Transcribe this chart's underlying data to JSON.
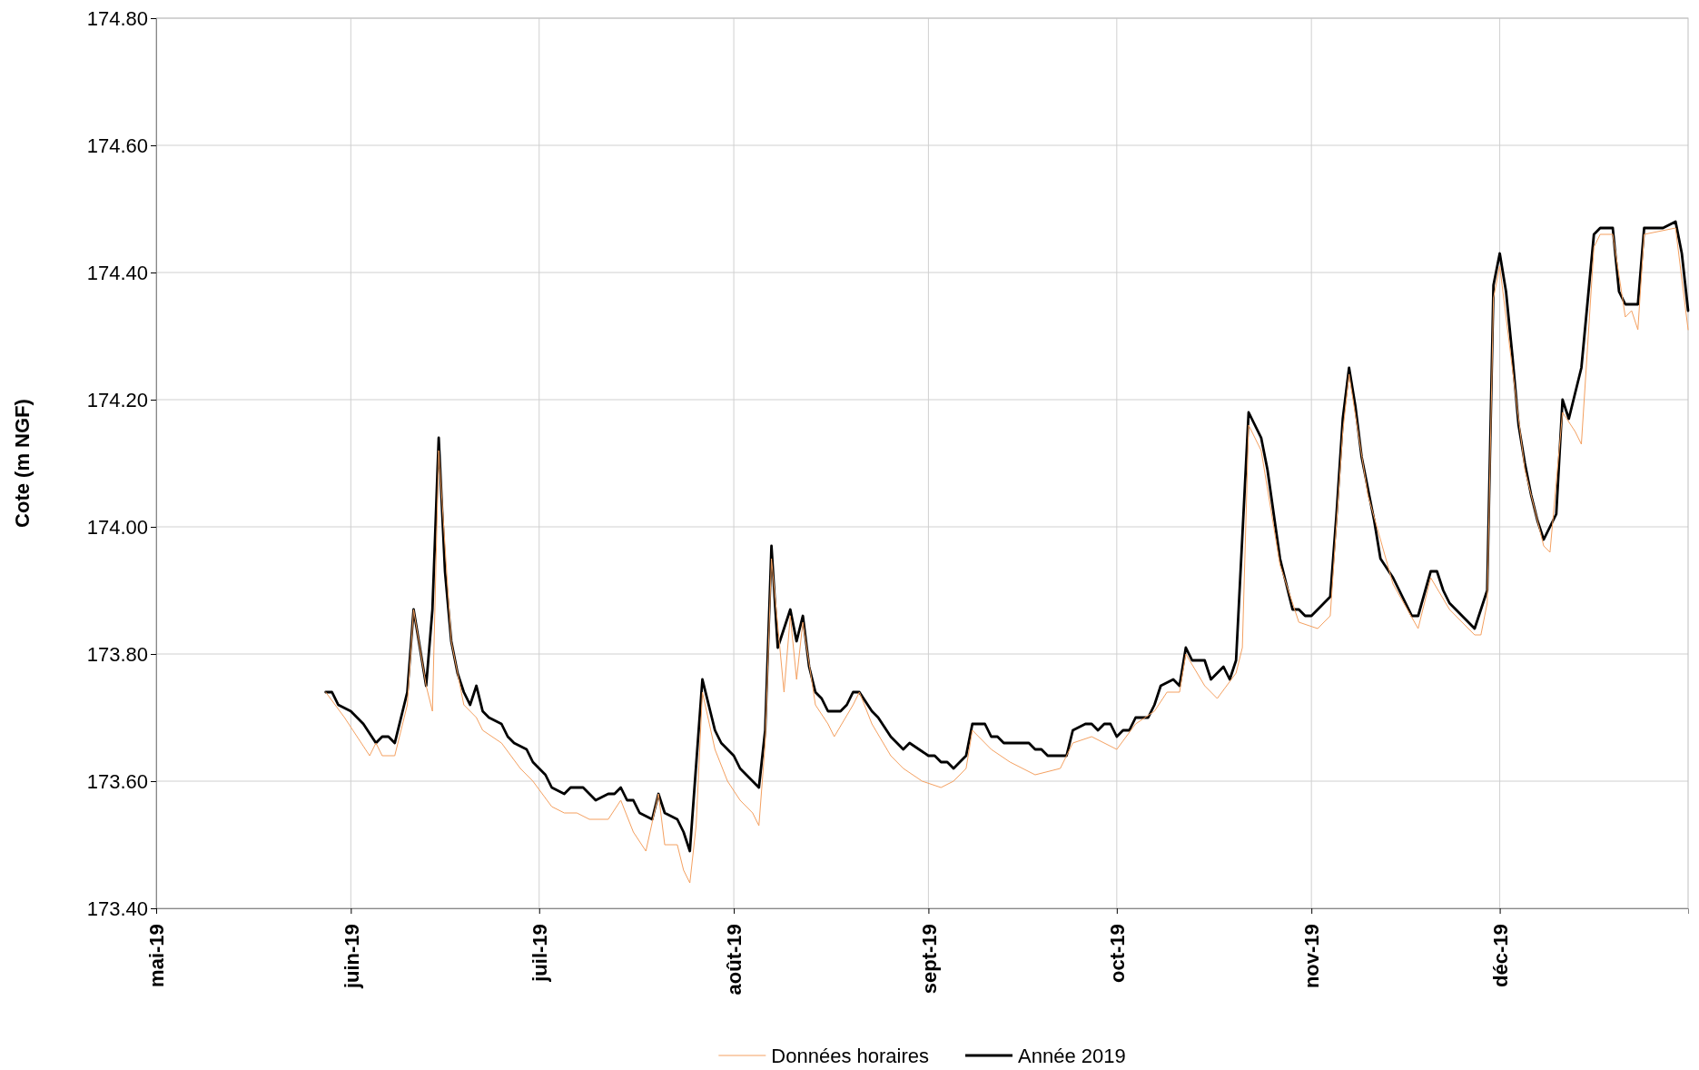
{
  "chart_data": {
    "type": "line",
    "ylabel": "Cote (m NGF)",
    "xlim": [
      "2019-05-01",
      "2019-12-31"
    ],
    "xticks": [
      {
        "value": "2019-05-01",
        "label": "mai-19"
      },
      {
        "value": "2019-06-01",
        "label": "juin-19"
      },
      {
        "value": "2019-07-01",
        "label": "juil-19"
      },
      {
        "value": "2019-08-01",
        "label": "août-19"
      },
      {
        "value": "2019-09-01",
        "label": "sept-19"
      },
      {
        "value": "2019-10-01",
        "label": "oct-19"
      },
      {
        "value": "2019-11-01",
        "label": "nov-19"
      },
      {
        "value": "2019-12-01",
        "label": "déc-19"
      }
    ],
    "ylim": [
      173.4,
      174.8
    ],
    "yticks": [
      {
        "value": 173.4,
        "label": "173.40"
      },
      {
        "value": 173.6,
        "label": "173.60"
      },
      {
        "value": 173.8,
        "label": "173.80"
      },
      {
        "value": 174.0,
        "label": "174.00"
      },
      {
        "value": 174.2,
        "label": "174.20"
      },
      {
        "value": 174.4,
        "label": "174.40"
      },
      {
        "value": 174.6,
        "label": "174.60"
      },
      {
        "value": 174.8,
        "label": "174.80"
      }
    ],
    "grid": true,
    "legend": "bottom",
    "line_style": "solid",
    "series": [
      {
        "name": "Données horaires",
        "color": "#f4a060",
        "x": [
          "2019-05-28",
          "2019-05-31",
          "2019-06-02",
          "2019-06-04",
          "2019-06-05",
          "2019-06-06",
          "2019-06-08",
          "2019-06-10",
          "2019-06-11",
          "2019-06-13",
          "2019-06-14",
          "2019-06-15",
          "2019-06-17",
          "2019-06-19",
          "2019-06-21",
          "2019-06-22",
          "2019-06-25",
          "2019-06-28",
          "2019-06-30",
          "2019-07-03",
          "2019-07-05",
          "2019-07-07",
          "2019-07-09",
          "2019-07-12",
          "2019-07-14",
          "2019-07-16",
          "2019-07-18",
          "2019-07-20",
          "2019-07-21",
          "2019-07-23",
          "2019-07-24",
          "2019-07-25",
          "2019-07-26",
          "2019-07-27",
          "2019-07-29",
          "2019-07-31",
          "2019-08-02",
          "2019-08-04",
          "2019-08-05",
          "2019-08-06",
          "2019-08-07",
          "2019-08-09",
          "2019-08-10",
          "2019-08-11",
          "2019-08-12",
          "2019-08-14",
          "2019-08-16",
          "2019-08-17",
          "2019-08-20",
          "2019-08-21",
          "2019-08-23",
          "2019-08-26",
          "2019-08-28",
          "2019-08-31",
          "2019-09-03",
          "2019-09-05",
          "2019-09-07",
          "2019-09-08",
          "2019-09-11",
          "2019-09-14",
          "2019-09-18",
          "2019-09-22",
          "2019-09-24",
          "2019-09-27",
          "2019-10-01",
          "2019-10-04",
          "2019-10-07",
          "2019-10-09",
          "2019-10-11",
          "2019-10-12",
          "2019-10-15",
          "2019-10-17",
          "2019-10-20",
          "2019-10-21",
          "2019-10-22",
          "2019-10-24",
          "2019-10-27",
          "2019-10-30",
          "2019-11-02",
          "2019-11-04",
          "2019-11-06",
          "2019-11-07",
          "2019-11-10",
          "2019-11-14",
          "2019-11-18",
          "2019-11-20",
          "2019-11-23",
          "2019-11-27",
          "2019-11-28",
          "2019-11-29",
          "2019-11-30",
          "2019-12-01",
          "2019-12-05",
          "2019-12-08",
          "2019-12-09",
          "2019-12-11",
          "2019-12-13",
          "2019-12-14",
          "2019-12-16",
          "2019-12-17",
          "2019-12-19",
          "2019-12-21",
          "2019-12-22",
          "2019-12-23",
          "2019-12-24",
          "2019-12-29",
          "2019-12-31"
        ],
        "values": [
          173.74,
          173.7,
          173.67,
          173.64,
          173.66,
          173.64,
          173.64,
          173.72,
          173.87,
          173.75,
          173.71,
          174.12,
          173.82,
          173.72,
          173.7,
          173.68,
          173.66,
          173.62,
          173.6,
          173.56,
          173.55,
          173.55,
          173.54,
          173.54,
          173.57,
          173.52,
          173.49,
          173.58,
          173.5,
          173.5,
          173.46,
          173.44,
          173.53,
          173.74,
          173.65,
          173.6,
          173.57,
          173.55,
          173.53,
          173.66,
          173.95,
          173.74,
          173.86,
          173.76,
          173.85,
          173.72,
          173.69,
          173.67,
          173.72,
          173.74,
          173.69,
          173.64,
          173.62,
          173.6,
          173.59,
          173.6,
          173.62,
          173.68,
          173.65,
          173.63,
          173.61,
          173.62,
          173.66,
          173.67,
          173.65,
          173.69,
          173.71,
          173.74,
          173.74,
          173.8,
          173.75,
          173.73,
          173.77,
          173.81,
          174.16,
          174.12,
          173.94,
          173.85,
          173.84,
          173.86,
          174.15,
          174.24,
          174.05,
          173.91,
          173.84,
          173.92,
          173.87,
          173.83,
          173.83,
          173.88,
          174.36,
          174.41,
          174.09,
          173.97,
          173.96,
          174.18,
          174.15,
          174.13,
          174.44,
          174.46,
          174.46,
          174.33,
          174.34,
          174.31,
          174.46,
          174.47,
          174.31
        ]
      },
      {
        "name": "Année 2019",
        "color": "#000000",
        "x": [
          "2019-05-28",
          "2019-05-29",
          "2019-05-30",
          "2019-06-01",
          "2019-06-02",
          "2019-06-03",
          "2019-06-05",
          "2019-06-06",
          "2019-06-07",
          "2019-06-08",
          "2019-06-10",
          "2019-06-11",
          "2019-06-12",
          "2019-06-13",
          "2019-06-14",
          "2019-06-15",
          "2019-06-16",
          "2019-06-17",
          "2019-06-18",
          "2019-06-19",
          "2019-06-20",
          "2019-06-21",
          "2019-06-22",
          "2019-06-23",
          "2019-06-25",
          "2019-06-26",
          "2019-06-27",
          "2019-06-29",
          "2019-06-30",
          "2019-07-02",
          "2019-07-03",
          "2019-07-05",
          "2019-07-06",
          "2019-07-08",
          "2019-07-10",
          "2019-07-12",
          "2019-07-13",
          "2019-07-14",
          "2019-07-15",
          "2019-07-16",
          "2019-07-17",
          "2019-07-19",
          "2019-07-20",
          "2019-07-21",
          "2019-07-23",
          "2019-07-24",
          "2019-07-25",
          "2019-07-27",
          "2019-07-28",
          "2019-07-29",
          "2019-07-30",
          "2019-08-01",
          "2019-08-02",
          "2019-08-03",
          "2019-08-05",
          "2019-08-06",
          "2019-08-07",
          "2019-08-08",
          "2019-08-10",
          "2019-08-11",
          "2019-08-12",
          "2019-08-13",
          "2019-08-14",
          "2019-08-15",
          "2019-08-16",
          "2019-08-18",
          "2019-08-19",
          "2019-08-20",
          "2019-08-21",
          "2019-08-23",
          "2019-08-24",
          "2019-08-26",
          "2019-08-28",
          "2019-08-29",
          "2019-09-01",
          "2019-09-02",
          "2019-09-03",
          "2019-09-04",
          "2019-09-05",
          "2019-09-07",
          "2019-09-08",
          "2019-09-10",
          "2019-09-11",
          "2019-09-12",
          "2019-09-13",
          "2019-09-17",
          "2019-09-18",
          "2019-09-19",
          "2019-09-20",
          "2019-09-23",
          "2019-09-24",
          "2019-09-26",
          "2019-09-27",
          "2019-09-28",
          "2019-09-29",
          "2019-09-30",
          "2019-10-01",
          "2019-10-02",
          "2019-10-03",
          "2019-10-04",
          "2019-10-06",
          "2019-10-07",
          "2019-10-08",
          "2019-10-10",
          "2019-10-11",
          "2019-10-12",
          "2019-10-13",
          "2019-10-15",
          "2019-10-16",
          "2019-10-17",
          "2019-10-18",
          "2019-10-19",
          "2019-10-20",
          "2019-10-22",
          "2019-10-24",
          "2019-10-25",
          "2019-10-27",
          "2019-10-29",
          "2019-10-30",
          "2019-10-31",
          "2019-11-01",
          "2019-11-03",
          "2019-11-04",
          "2019-11-05",
          "2019-11-06",
          "2019-11-07",
          "2019-11-08",
          "2019-11-09",
          "2019-11-10",
          "2019-11-11",
          "2019-11-12",
          "2019-11-14",
          "2019-11-17",
          "2019-11-18",
          "2019-11-20",
          "2019-11-21",
          "2019-11-22",
          "2019-11-23",
          "2019-11-27",
          "2019-11-29",
          "2019-11-30",
          "2019-12-01",
          "2019-12-02",
          "2019-12-03",
          "2019-12-04",
          "2019-12-05",
          "2019-12-06",
          "2019-12-07",
          "2019-12-08",
          "2019-12-10",
          "2019-12-11",
          "2019-12-12",
          "2019-12-14",
          "2019-12-16",
          "2019-12-17",
          "2019-12-19",
          "2019-12-20",
          "2019-12-21",
          "2019-12-23",
          "2019-12-24",
          "2019-12-27",
          "2019-12-29",
          "2019-12-30",
          "2019-12-31"
        ],
        "values": [
          173.74,
          173.74,
          173.72,
          173.71,
          173.7,
          173.69,
          173.66,
          173.67,
          173.67,
          173.66,
          173.74,
          173.87,
          173.81,
          173.75,
          173.87,
          174.14,
          173.93,
          173.82,
          173.77,
          173.74,
          173.72,
          173.75,
          173.71,
          173.7,
          173.69,
          173.67,
          173.66,
          173.65,
          173.63,
          173.61,
          173.59,
          173.58,
          173.59,
          173.59,
          173.57,
          173.58,
          173.58,
          173.59,
          173.57,
          173.57,
          173.55,
          173.54,
          173.58,
          173.55,
          173.54,
          173.52,
          173.49,
          173.76,
          173.72,
          173.68,
          173.66,
          173.64,
          173.62,
          173.61,
          173.59,
          173.68,
          173.97,
          173.81,
          173.87,
          173.82,
          173.86,
          173.78,
          173.74,
          173.73,
          173.71,
          173.71,
          173.72,
          173.74,
          173.74,
          173.71,
          173.7,
          173.67,
          173.65,
          173.66,
          173.64,
          173.64,
          173.63,
          173.63,
          173.62,
          173.64,
          173.69,
          173.69,
          173.67,
          173.67,
          173.66,
          173.66,
          173.65,
          173.65,
          173.64,
          173.64,
          173.68,
          173.69,
          173.69,
          173.68,
          173.69,
          173.69,
          173.67,
          173.68,
          173.68,
          173.7,
          173.7,
          173.72,
          173.75,
          173.76,
          173.75,
          173.81,
          173.79,
          173.79,
          173.76,
          173.77,
          173.78,
          173.76,
          173.79,
          174.18,
          174.14,
          174.09,
          173.95,
          173.87,
          173.87,
          173.86,
          173.86,
          173.88,
          173.89,
          174.02,
          174.17,
          174.25,
          174.19,
          174.11,
          174.06,
          174.01,
          173.95,
          173.92,
          173.86,
          173.86,
          173.93,
          173.93,
          173.9,
          173.88,
          173.84,
          173.9,
          174.38,
          174.43,
          174.37,
          174.27,
          174.16,
          174.1,
          174.05,
          174.01,
          173.98,
          174.02,
          174.2,
          174.17,
          174.25,
          174.46,
          174.47,
          174.47,
          174.37,
          174.35,
          174.35,
          174.47,
          174.47,
          174.48,
          174.43,
          174.34
        ]
      }
    ]
  }
}
